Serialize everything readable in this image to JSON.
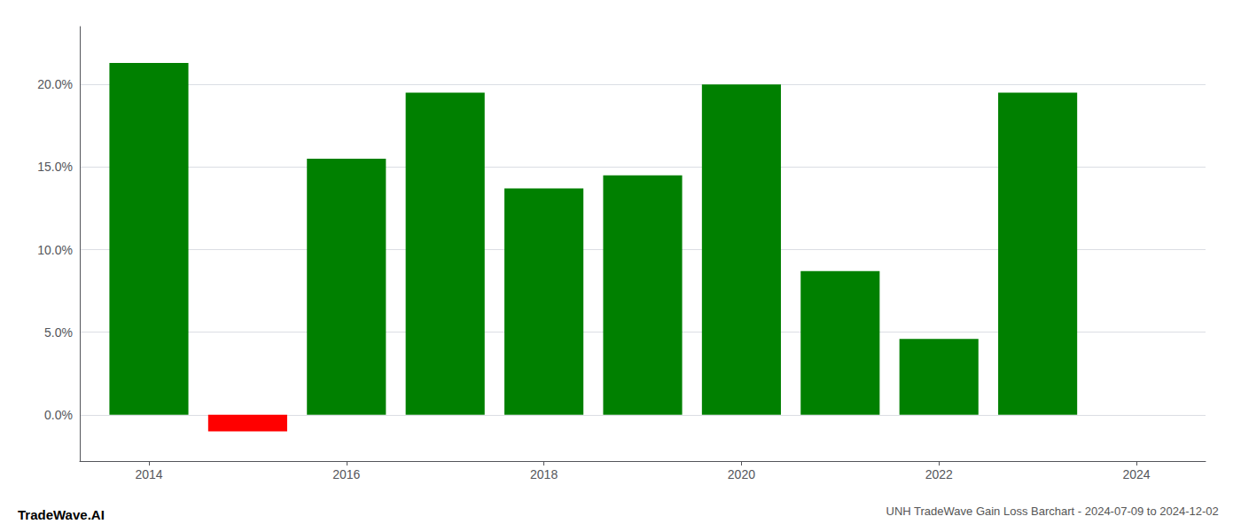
{
  "chart_data": {
    "type": "bar",
    "title": "UNH TradeWave Gain Loss Barchart - 2024-07-09 to 2024-12-02",
    "annotations": [
      "TradeWave.AI"
    ],
    "x": [
      2014,
      2015,
      2016,
      2017,
      2018,
      2019,
      2020,
      2021,
      2022,
      2023
    ],
    "values": [
      0.213,
      -0.01,
      0.155,
      0.195,
      0.137,
      0.145,
      0.2,
      0.087,
      0.046,
      0.195
    ],
    "colors": [
      "#008000",
      "#ff0000",
      "#008000",
      "#008000",
      "#008000",
      "#008000",
      "#008000",
      "#008000",
      "#008000",
      "#008000"
    ],
    "xlim": [
      2013.3,
      2024.7
    ],
    "ylim": [
      -0.028,
      0.235
    ],
    "xticks": [
      2014,
      2016,
      2018,
      2020,
      2022,
      2024
    ],
    "yticks": [
      {
        "value": 0.0,
        "label": "0.0%"
      },
      {
        "value": 0.05,
        "label": "5.0%"
      },
      {
        "value": 0.1,
        "label": "10.0%"
      },
      {
        "value": 0.15,
        "label": "15.0%"
      },
      {
        "value": 0.2,
        "label": "20.0%"
      }
    ],
    "grid": true
  }
}
